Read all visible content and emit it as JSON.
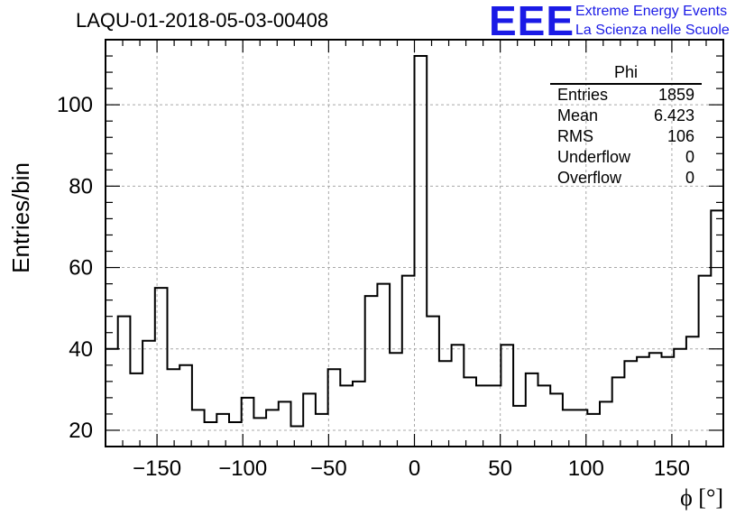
{
  "title": "LAQU-01-2018-05-03-00408",
  "logo": {
    "mark": "EEE",
    "line1": "Extreme Energy Events",
    "line2": "La Scienza nelle Scuole",
    "color": "#1a1ae6"
  },
  "stats": {
    "name": "Phi",
    "rows": [
      {
        "label": "Entries",
        "value": "1859"
      },
      {
        "label": "Mean",
        "value": "6.423"
      },
      {
        "label": "RMS",
        "value": "106"
      },
      {
        "label": "Underflow",
        "value": "0"
      },
      {
        "label": "Overflow",
        "value": "0"
      }
    ]
  },
  "chart_data": {
    "type": "histogram",
    "title": "LAQU-01-2018-05-03-00408",
    "xlabel": "ϕ [°]",
    "ylabel": "Entries/bin",
    "xlim": [
      -180,
      180
    ],
    "ylim": [
      16,
      116
    ],
    "bin_width": 7.2,
    "xticks": [
      -150,
      -100,
      -50,
      0,
      50,
      100,
      150
    ],
    "xtick_labels": [
      "−150",
      "−100",
      "−50",
      "0",
      "50",
      "100",
      "150"
    ],
    "yticks": [
      20,
      40,
      60,
      80,
      100
    ],
    "grid": true,
    "values": [
      40,
      48,
      34,
      42,
      55,
      35,
      36,
      25,
      22,
      24,
      22,
      28,
      23,
      25,
      27,
      21,
      29,
      24,
      35,
      31,
      32,
      53,
      56,
      39,
      58,
      112,
      48,
      37,
      41,
      33,
      31,
      31,
      41,
      26,
      34,
      31,
      29,
      25,
      25,
      24,
      27,
      33,
      37,
      38,
      39,
      38,
      40,
      43,
      58,
      74
    ]
  }
}
